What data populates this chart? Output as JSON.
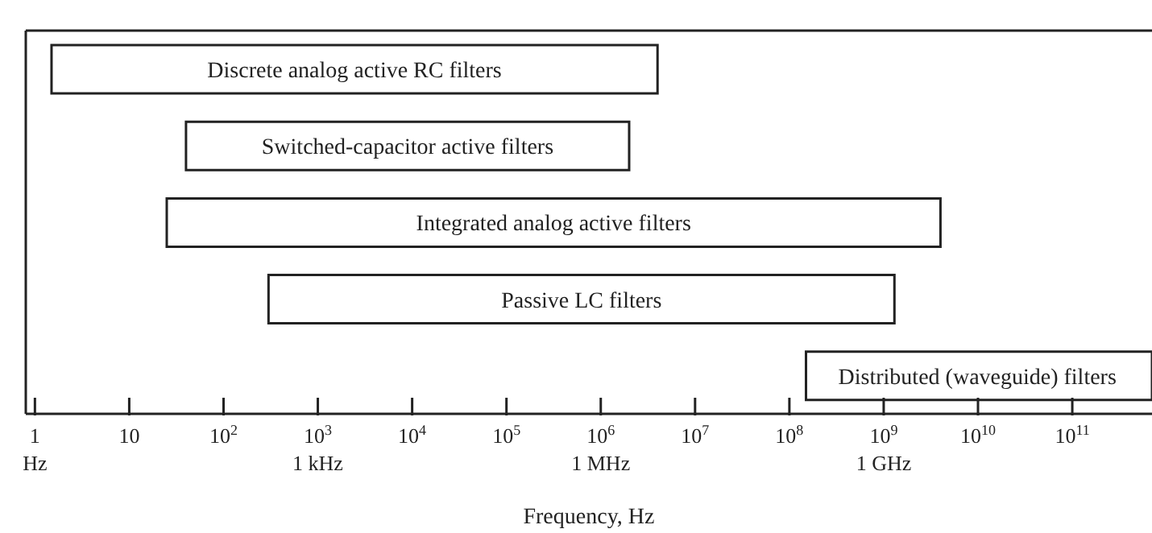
{
  "chart_data": {
    "type": "bar",
    "orientation": "horizontal",
    "log": "x",
    "xlabel": "Frequency, Hz",
    "categories": [
      "Discrete analog active RC filters",
      "Switched-capacitor active filters",
      "Integrated analog active filters",
      "Passive LC filters",
      "Distributed (waveguide) filters"
    ],
    "base": [
      1.5,
      40,
      25,
      300,
      150000000
    ],
    "values": [
      4000000,
      2000000,
      4000000000,
      1300000000,
      699850000000
    ],
    "color": "#ffffff",
    "xlim": [
      0.8,
      700000000000
    ],
    "xticks": [
      {
        "value": 1,
        "label": "1\nHz"
      },
      10,
      {
        "value": 100,
        "label": "10$^{2}$"
      },
      {
        "value": 1000,
        "label": "10$^{3}$\n1 kHz"
      },
      {
        "value": 10000,
        "label": "10$^{4}$"
      },
      {
        "value": 100000,
        "label": "10$^{5}$"
      },
      {
        "value": 1000000,
        "label": "10$^{6}$\n1 MHz"
      },
      {
        "value": 10000000,
        "label": "10$^{7}$"
      },
      {
        "value": 100000000,
        "label": "10$^{8}$"
      },
      {
        "value": 1000000000,
        "label": "10$^{9}$\n1 GHz"
      },
      {
        "value": 10000000000,
        "label": "10$^{10}$"
      },
      {
        "value": 100000000000,
        "label": "10$^{11}$"
      }
    ],
    "grid": false,
    "legend": false
  }
}
